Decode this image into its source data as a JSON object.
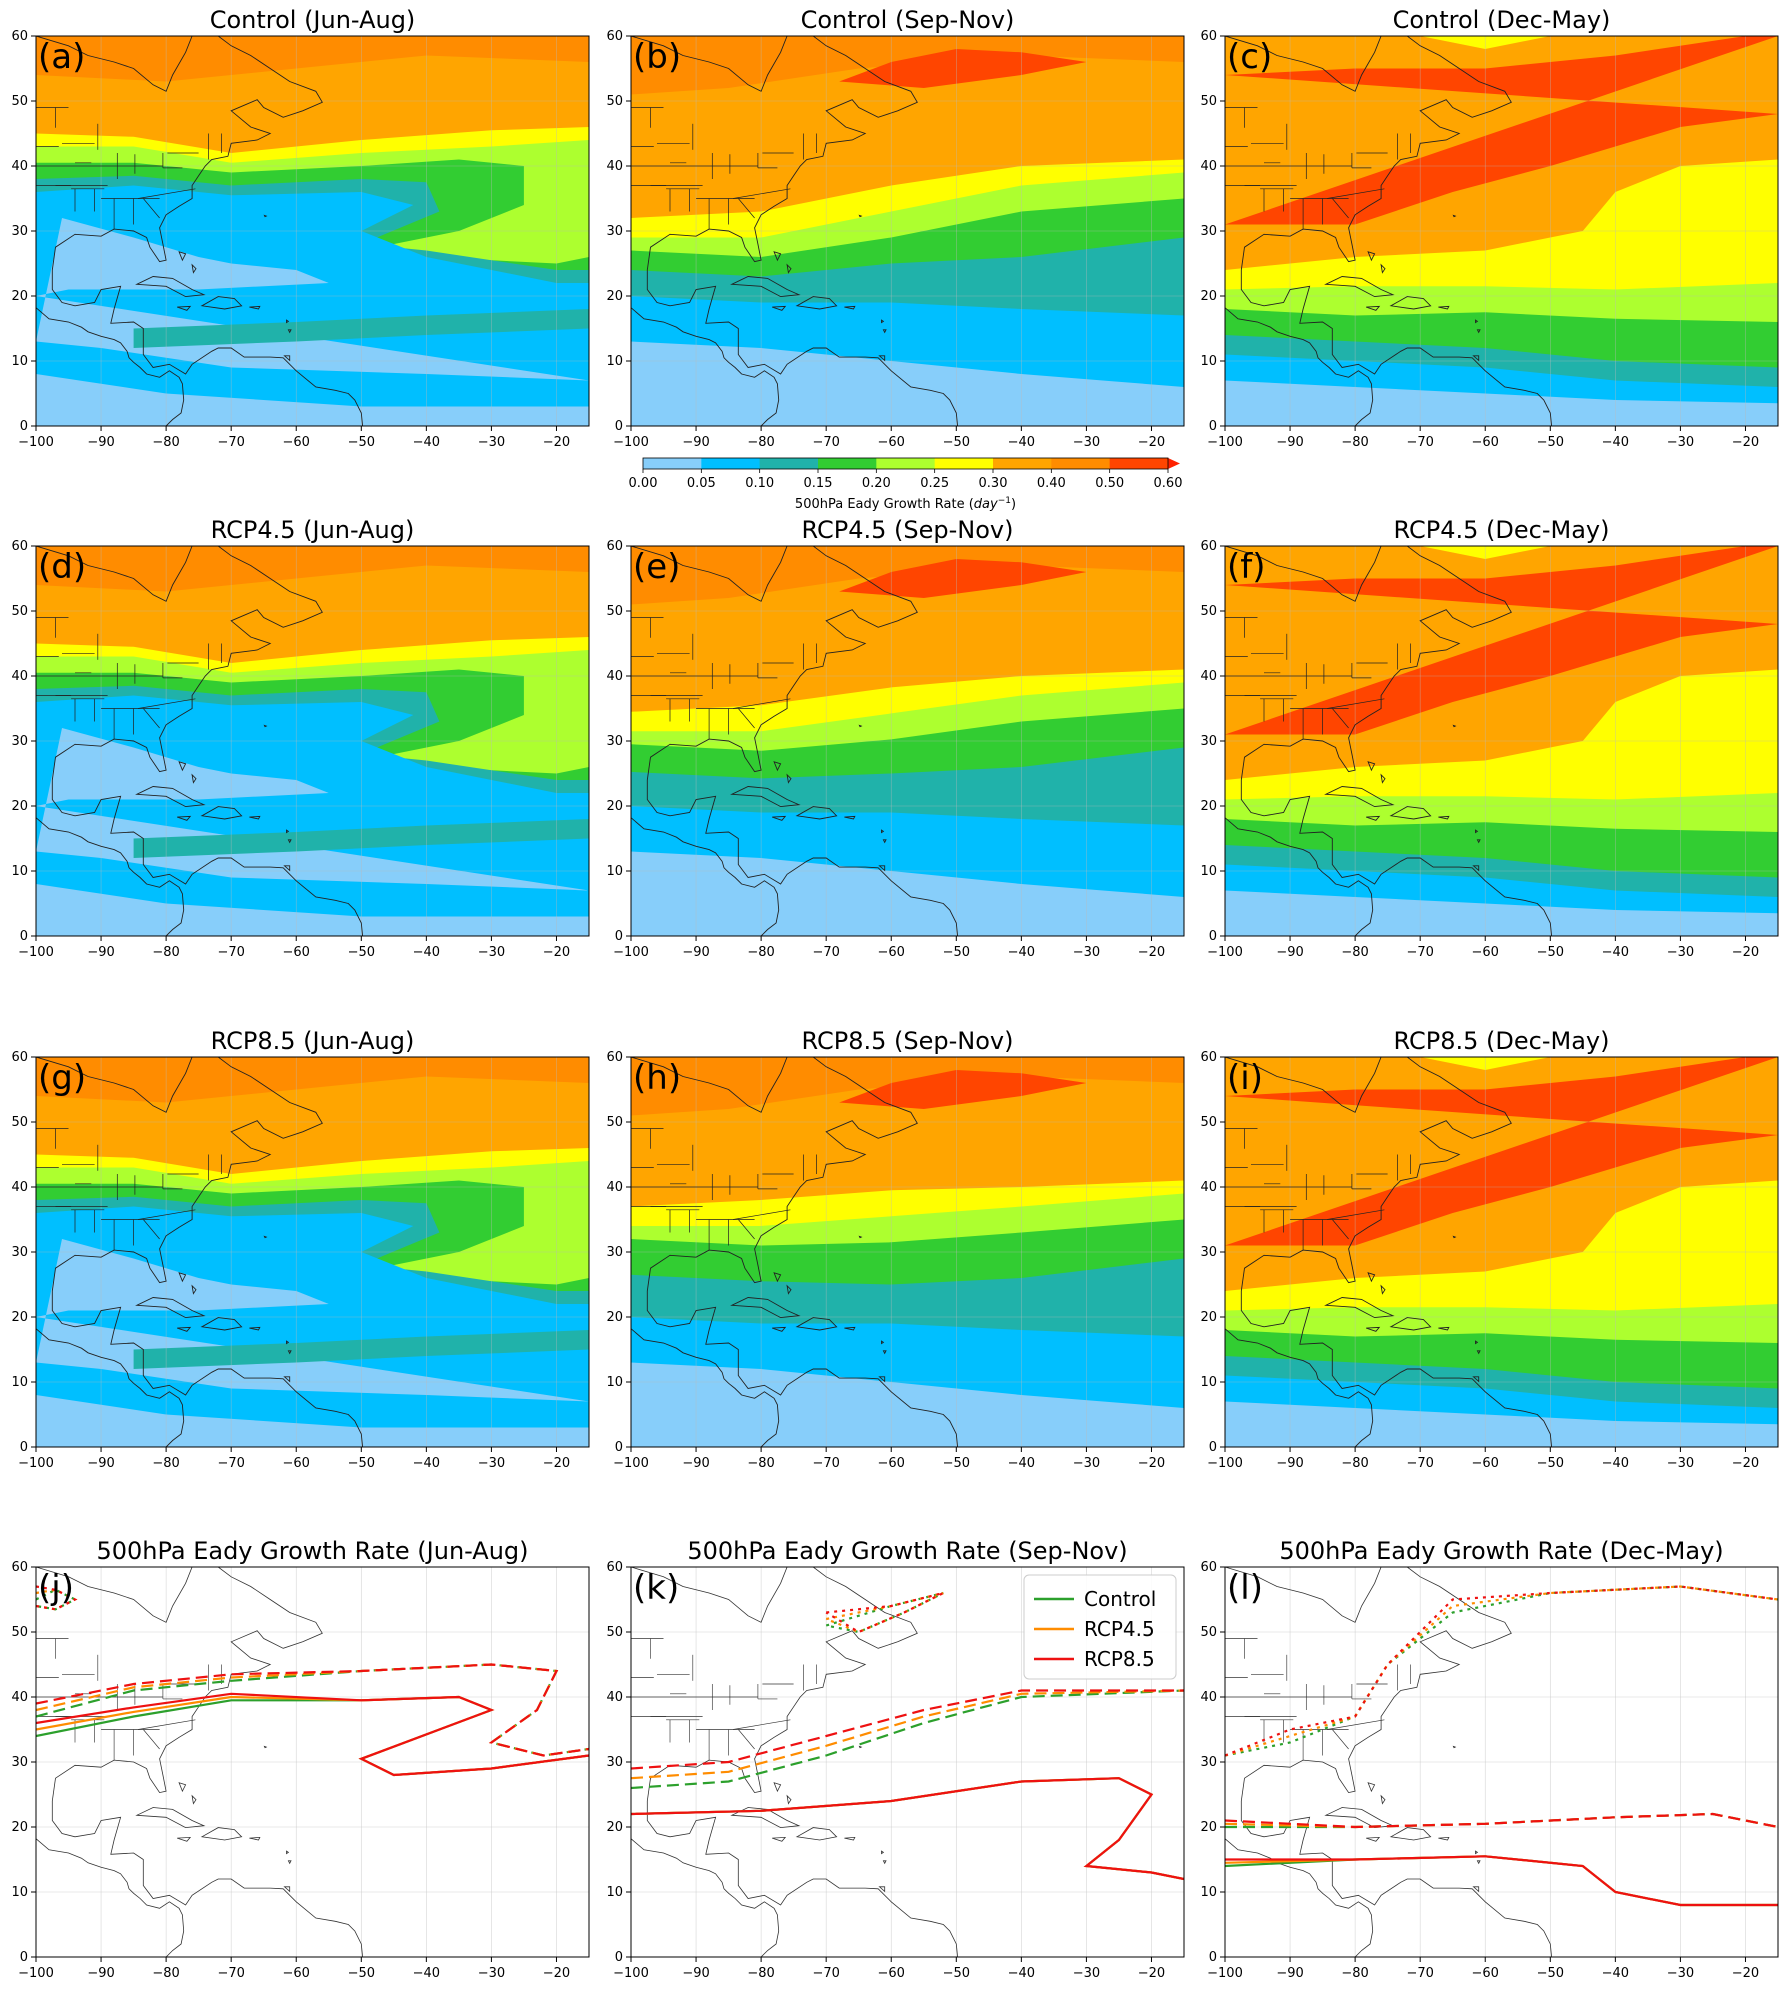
{
  "chart_data": {
    "type": "contour-map-grid",
    "layout": "4 rows x 3 columns",
    "x_ticks": [
      -100,
      -90,
      -80,
      -70,
      -60,
      -50,
      -40,
      -30,
      -20
    ],
    "y_ticks": [
      0,
      10,
      20,
      30,
      40,
      50,
      60
    ],
    "xlim": [
      -100,
      -15
    ],
    "ylim": [
      0,
      60
    ],
    "colorbar": {
      "label_prefix": "500hPa Eady Growth Rate (",
      "label_unit": "day",
      "label_exp": "−1",
      "label_suffix": ")",
      "levels": [
        0.0,
        0.05,
        0.1,
        0.15,
        0.2,
        0.25,
        0.3,
        0.4,
        0.5,
        0.6
      ],
      "tick_labels": [
        "0.00",
        "0.05",
        "0.10",
        "0.15",
        "0.20",
        "0.25",
        "0.30",
        "0.40",
        "0.50",
        "0.60"
      ],
      "colors": [
        "#87cefa",
        "#00bfff",
        "#20b2aa",
        "#32cd32",
        "#adff2f",
        "#ffff00",
        "#ffa500",
        "#ff8c00",
        "#ff4500"
      ],
      "extend": "max"
    },
    "filled_panels": [
      {
        "id": "a",
        "label": "(a)",
        "title": "Control (Jun-Aug)",
        "scenario": "Control",
        "season": "Jun-Aug"
      },
      {
        "id": "b",
        "label": "(b)",
        "title": "Control (Sep-Nov)",
        "scenario": "Control",
        "season": "Sep-Nov"
      },
      {
        "id": "c",
        "label": "(c)",
        "title": "Control (Dec-May)",
        "scenario": "Control",
        "season": "Dec-May"
      },
      {
        "id": "d",
        "label": "(d)",
        "title": "RCP4.5 (Jun-Aug)",
        "scenario": "RCP4.5",
        "season": "Jun-Aug"
      },
      {
        "id": "e",
        "label": "(e)",
        "title": "RCP4.5 (Sep-Nov)",
        "scenario": "RCP4.5",
        "season": "Sep-Nov"
      },
      {
        "id": "f",
        "label": "(f)",
        "title": "RCP4.5 (Dec-May)",
        "scenario": "RCP4.5",
        "season": "Dec-May"
      },
      {
        "id": "g",
        "label": "(g)",
        "title": "RCP8.5 (Jun-Aug)",
        "scenario": "RCP8.5",
        "season": "Jun-Aug"
      },
      {
        "id": "h",
        "label": "(h)",
        "title": "RCP8.5 (Sep-Nov)",
        "scenario": "RCP8.5",
        "season": "Sep-Nov"
      },
      {
        "id": "i",
        "label": "(i)",
        "title": "RCP8.5 (Dec-May)",
        "scenario": "RCP8.5",
        "season": "Dec-May"
      }
    ],
    "contour_panels": [
      {
        "id": "j",
        "label": "(j)",
        "title": "500hPa Eady Growth Rate (Jun-Aug)",
        "levels": [
          0.15,
          0.25,
          0.5
        ]
      },
      {
        "id": "k",
        "label": "(k)",
        "title": "500hPa Eady Growth Rate (Sep-Nov)",
        "levels": [
          0.15,
          0.25,
          0.5
        ]
      },
      {
        "id": "l",
        "label": "(l)",
        "title": "500hPa Eady Growth Rate (Dec-May)",
        "levels": [
          0.15,
          0.25,
          0.5
        ]
      }
    ],
    "contour_styles": {
      "0.15": "solid",
      "0.25": "dashed",
      "0.5": "dotted"
    },
    "legend": {
      "placement": "upper-right of panel (k)",
      "entries": [
        {
          "name": "Control",
          "color": "#2ca02c"
        },
        {
          "name": "RCP4.5",
          "color": "#ff8c00"
        },
        {
          "name": "RCP8.5",
          "color": "#ee1111"
        }
      ]
    },
    "grid": true,
    "land_outlines": "coastlines and US state boundaries"
  }
}
